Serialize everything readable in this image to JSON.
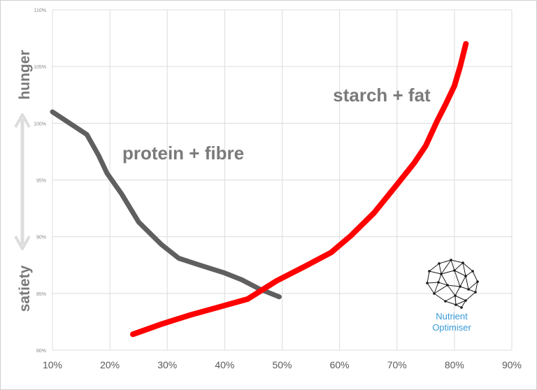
{
  "chart_data": {
    "type": "line",
    "x_ticks": [
      "10%",
      "20%",
      "30%",
      "40%",
      "50%",
      "60%",
      "70%",
      "80%",
      "90%"
    ],
    "y_ticks": [
      "80%",
      "85%",
      "90%",
      "95%",
      "100%",
      "105%",
      "110%"
    ],
    "xlim": [
      10,
      90
    ],
    "ylim": [
      80,
      110
    ],
    "grid": true,
    "y_axis_labels": {
      "top": "hunger",
      "bottom": "satiety"
    },
    "series": [
      {
        "name": "protein + fibre",
        "color": "#5f5f5f",
        "x": [
          10,
          16,
          18,
          19.5,
          22,
          25,
          29,
          32,
          35,
          40,
          43,
          46,
          49.5
        ],
        "y": [
          101,
          99,
          97.2,
          95.6,
          93.8,
          91.3,
          89.3,
          88.1,
          87.6,
          86.8,
          86.2,
          85.4,
          84.7
        ]
      },
      {
        "name": "starch + fat",
        "color": "#ff0000",
        "x": [
          24,
          29,
          34,
          39,
          44,
          49,
          54,
          58.5,
          62,
          66,
          70,
          73,
          75,
          77,
          78.5,
          80,
          81,
          82
        ],
        "y": [
          81.4,
          82.3,
          83.1,
          83.8,
          84.5,
          86.1,
          87.4,
          88.6,
          90.1,
          92.1,
          94.6,
          96.5,
          98,
          100.2,
          101.7,
          103.3,
          105,
          107
        ]
      }
    ]
  },
  "brand": {
    "icon": "brain-network-icon",
    "line1": "Nutrient",
    "line2": "Optimiser",
    "color": "#3a9ad9"
  }
}
